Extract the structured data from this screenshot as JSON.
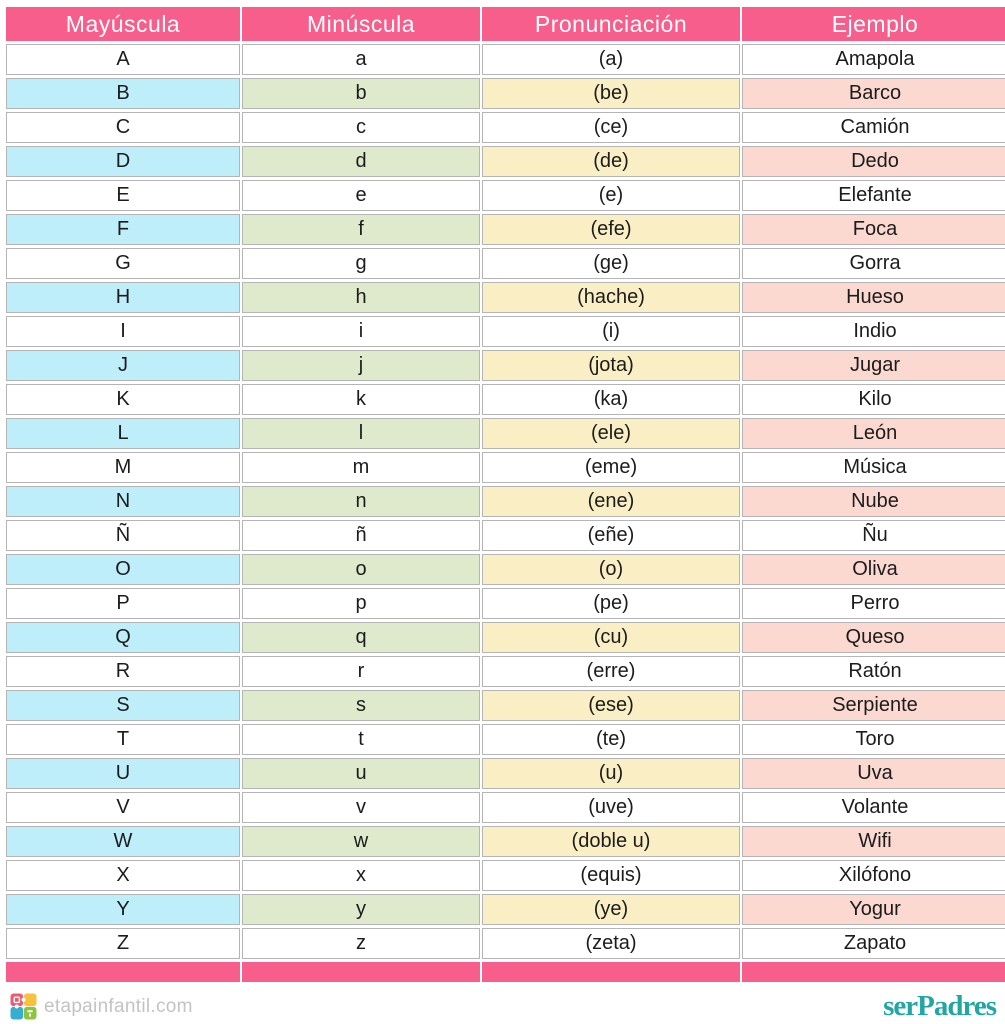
{
  "colors": {
    "header_bg": "#f75e8c",
    "col_mayuscula_tint": "#bdeefa",
    "col_minuscula_tint": "#dfeacc",
    "col_pronunciacion_tint": "#faefc4",
    "col_ejemplo_tint": "#fbd9d1",
    "cell_border": "#b5b5b5",
    "brand_teal": "#21a7a3",
    "site_text_gray": "#c3c3c3"
  },
  "chart_data": {
    "type": "table",
    "columns": [
      "Mayúscula",
      "Minúscula",
      "Pronunciación",
      "Ejemplo"
    ],
    "rows": [
      [
        "A",
        "a",
        "(a)",
        "Amapola"
      ],
      [
        "B",
        "b",
        "(be)",
        "Barco"
      ],
      [
        "C",
        "c",
        "(ce)",
        "Camión"
      ],
      [
        "D",
        "d",
        "(de)",
        "Dedo"
      ],
      [
        "E",
        "e",
        "(e)",
        "Elefante"
      ],
      [
        "F",
        "f",
        "(efe)",
        "Foca"
      ],
      [
        "G",
        "g",
        "(ge)",
        "Gorra"
      ],
      [
        "H",
        "h",
        "(hache)",
        "Hueso"
      ],
      [
        "I",
        "i",
        "(i)",
        "Indio"
      ],
      [
        "J",
        "j",
        "(jota)",
        "Jugar"
      ],
      [
        "K",
        "k",
        "(ka)",
        "Kilo"
      ],
      [
        "L",
        "l",
        "(ele)",
        "León"
      ],
      [
        "M",
        "m",
        "(eme)",
        "Música"
      ],
      [
        "N",
        "n",
        "(ene)",
        "Nube"
      ],
      [
        "Ñ",
        "ñ",
        "(eñe)",
        "Ñu"
      ],
      [
        "O",
        "o",
        "(o)",
        "Oliva"
      ],
      [
        "P",
        "p",
        "(pe)",
        "Perro"
      ],
      [
        "Q",
        "q",
        "(cu)",
        "Queso"
      ],
      [
        "R",
        "r",
        "(erre)",
        "Ratón"
      ],
      [
        "S",
        "s",
        "(ese)",
        "Serpiente"
      ],
      [
        "T",
        "t",
        "(te)",
        "Toro"
      ],
      [
        "U",
        "u",
        "(u)",
        "Uva"
      ],
      [
        "V",
        "v",
        "(uve)",
        "Volante"
      ],
      [
        "W",
        "w",
        "(doble u)",
        "Wifi"
      ],
      [
        "X",
        "x",
        "(equis)",
        "Xilófono"
      ],
      [
        "Y",
        "y",
        "(ye)",
        "Yogur"
      ],
      [
        "Z",
        "z",
        "(zeta)",
        "Zapato"
      ]
    ]
  },
  "footer": {
    "site": "etapainfantil.com",
    "brand": "serPadres"
  }
}
